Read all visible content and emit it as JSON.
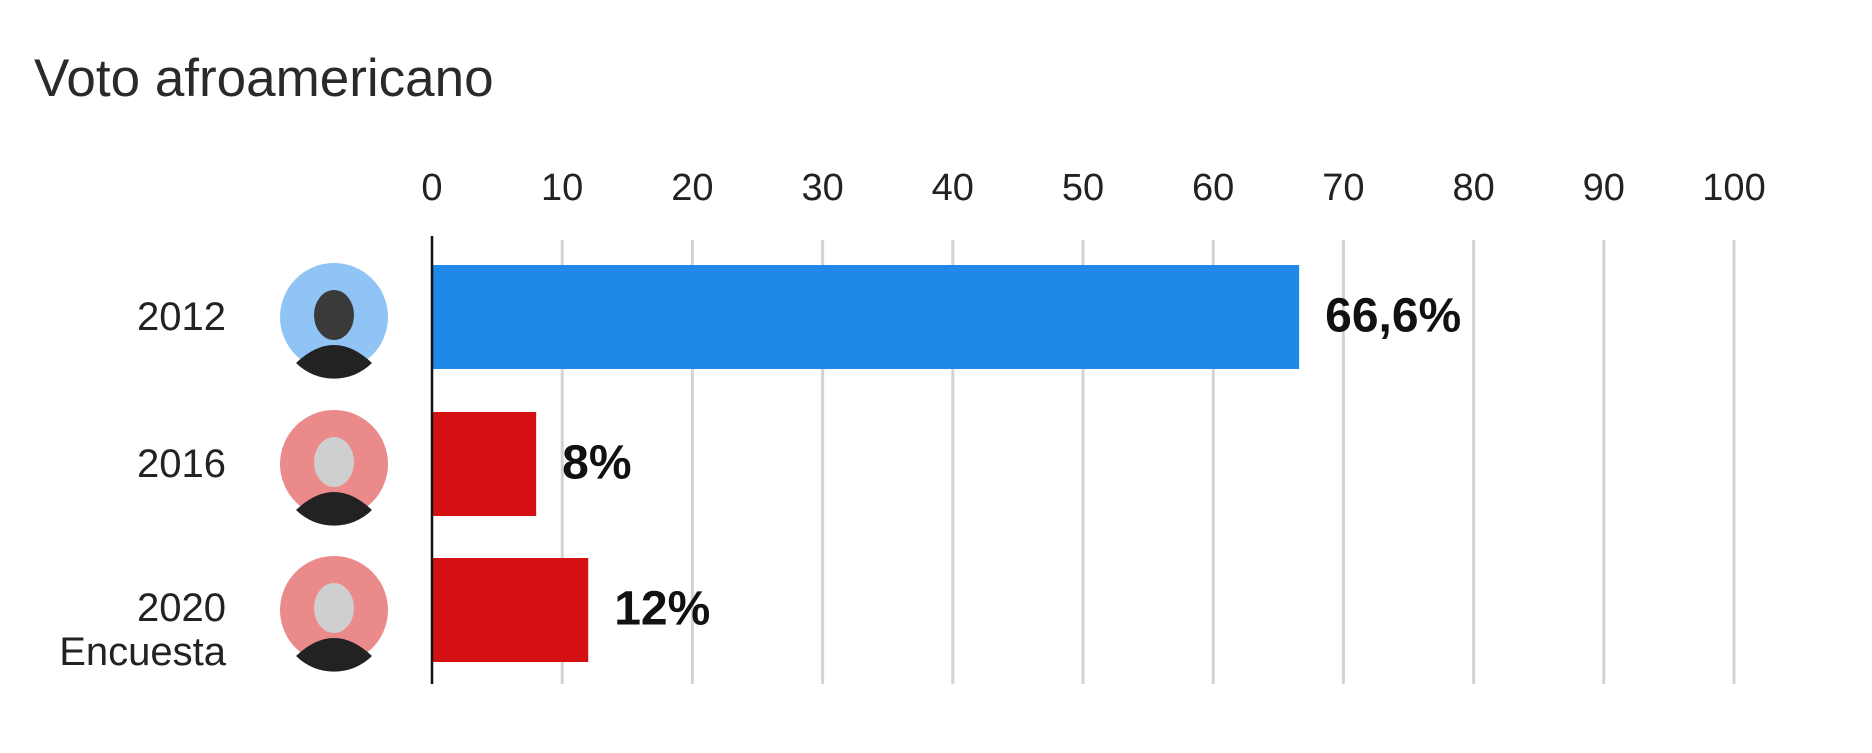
{
  "chart_data": {
    "type": "bar",
    "orientation": "horizontal",
    "title": "Voto afroamericano",
    "categories": [
      "2012",
      "2016",
      "2020\nEncuesta"
    ],
    "values": [
      66.6,
      8,
      12
    ],
    "value_labels": [
      "66,6%",
      "8%",
      "12%"
    ],
    "colors": [
      "#1f88e8",
      "#d41012",
      "#d41012"
    ],
    "xlim": [
      0,
      100
    ],
    "xticks": [
      0,
      10,
      20,
      30,
      40,
      50,
      60,
      70,
      80,
      90,
      100
    ],
    "grid": true
  }
}
